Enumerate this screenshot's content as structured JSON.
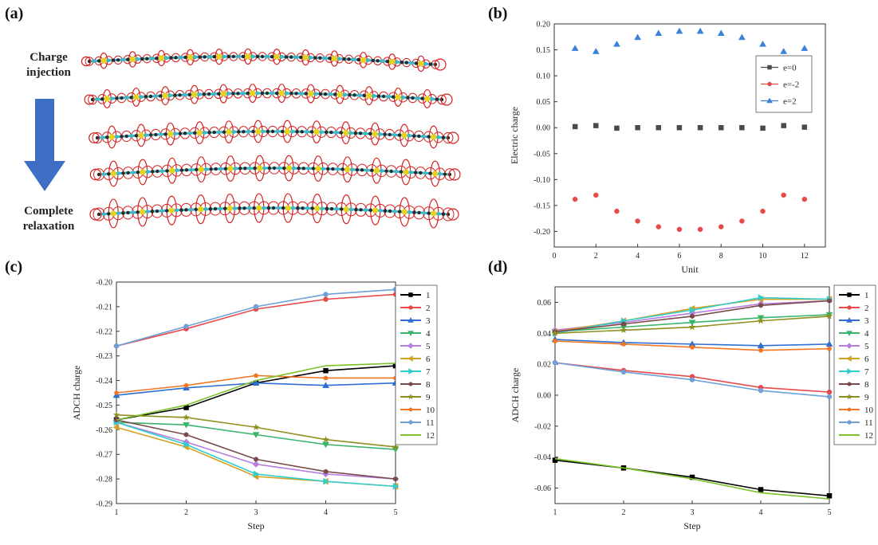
{
  "labels": {
    "a": "(a)",
    "b": "(b)",
    "c": "(c)",
    "d": "(d)",
    "charge_injection": [
      "Charge",
      "injection"
    ],
    "complete_relaxation": [
      "Complete",
      "relaxation"
    ]
  },
  "colors": {
    "arrow": "#3f6fc4",
    "chain_carbon": "#2a2a2a",
    "chain_nitrogen": "#3fb8c9",
    "chain_sulfur": "#e8d21a",
    "orbital": "#d42020"
  },
  "molecule_rows": [
    {
      "orbital_scale": 0.3
    },
    {
      "orbital_scale": 0.45
    },
    {
      "orbital_scale": 0.65
    },
    {
      "orbital_scale": 0.82
    },
    {
      "orbital_scale": 1.0
    }
  ],
  "chart_data": [
    {
      "id": "b",
      "type": "scatter",
      "xlabel": "Unit",
      "ylabel": "Electric charge",
      "xlim": [
        0,
        13
      ],
      "ylim": [
        -0.23,
        0.2
      ],
      "xticks": [
        "0",
        "2",
        "4",
        "6",
        "8",
        "10",
        "12"
      ],
      "xtick_values": [
        0,
        2,
        4,
        6,
        8,
        10,
        12
      ],
      "yticks": [
        "-0.20",
        "-0.15",
        "-0.10",
        "-0.05",
        "0.00",
        "0.05",
        "0.10",
        "0.15",
        "0.20"
      ],
      "ytick_values": [
        -0.2,
        -0.15,
        -0.1,
        -0.05,
        0,
        0.05,
        0.1,
        0.15,
        0.2
      ],
      "legend_position": "right",
      "x": [
        1,
        2,
        3,
        4,
        5,
        6,
        7,
        8,
        9,
        10,
        11,
        12
      ],
      "series": [
        {
          "name": "e=0",
          "color": "#4a4a4a",
          "marker": "square",
          "values": [
            0.002,
            0.004,
            -0.001,
            0.0,
            0.0,
            0.0,
            0.0,
            0.0,
            0.0,
            -0.001,
            0.004,
            0.001
          ]
        },
        {
          "name": "e=-2",
          "color": "#e84a4a",
          "marker": "circle",
          "values": [
            -0.138,
            -0.13,
            -0.161,
            -0.18,
            -0.191,
            -0.196,
            -0.196,
            -0.191,
            -0.18,
            -0.161,
            -0.13,
            -0.138
          ]
        },
        {
          "name": "e=2",
          "color": "#3a82d8",
          "marker": "triangle",
          "values": [
            0.153,
            0.147,
            0.161,
            0.174,
            0.182,
            0.186,
            0.186,
            0.182,
            0.174,
            0.161,
            0.147,
            0.153
          ]
        }
      ]
    },
    {
      "id": "c",
      "type": "line",
      "xlabel": "Step",
      "ylabel": "ADCH charge",
      "xlim": [
        1,
        5
      ],
      "ylim": [
        -0.29,
        -0.2
      ],
      "xticks": [
        "1",
        "2",
        "3",
        "4",
        "5"
      ],
      "xtick_values": [
        1,
        2,
        3,
        4,
        5
      ],
      "yticks": [
        "-0.29",
        "-0.28",
        "-0.27",
        "-0.26",
        "-0.25",
        "-0.24",
        "-0.23",
        "-0.22",
        "-0.21",
        "-0.20"
      ],
      "ytick_values": [
        -0.29,
        -0.28,
        -0.27,
        -0.26,
        -0.25,
        -0.24,
        -0.23,
        -0.22,
        -0.21,
        -0.2
      ],
      "legend_position": "right",
      "x": [
        1,
        2,
        3,
        4,
        5
      ],
      "series": [
        {
          "name": "1",
          "color": "#000000",
          "marker": "square",
          "values": [
            -0.256,
            -0.251,
            -0.241,
            -0.236,
            -0.234
          ]
        },
        {
          "name": "2",
          "color": "#e84a4a",
          "marker": "circle",
          "values": [
            -0.226,
            -0.219,
            -0.211,
            -0.207,
            -0.205
          ]
        },
        {
          "name": "3",
          "color": "#2f6fd1",
          "marker": "triangle",
          "values": [
            -0.246,
            -0.243,
            -0.241,
            -0.242,
            -0.241
          ]
        },
        {
          "name": "4",
          "color": "#3bb36b",
          "marker": "triangle-down",
          "values": [
            -0.257,
            -0.258,
            -0.262,
            -0.266,
            -0.268
          ]
        },
        {
          "name": "5",
          "color": "#b77ee0",
          "marker": "diamond",
          "values": [
            -0.257,
            -0.265,
            -0.274,
            -0.278,
            -0.28
          ]
        },
        {
          "name": "6",
          "color": "#d4a020",
          "marker": "triangle-left",
          "values": [
            -0.259,
            -0.267,
            -0.279,
            -0.281,
            -0.283
          ]
        },
        {
          "name": "7",
          "color": "#33cccc",
          "marker": "triangle-right",
          "values": [
            -0.257,
            -0.266,
            -0.278,
            -0.281,
            -0.283
          ]
        },
        {
          "name": "8",
          "color": "#7a4a4a",
          "marker": "hexagon",
          "values": [
            -0.256,
            -0.262,
            -0.272,
            -0.277,
            -0.28
          ]
        },
        {
          "name": "9",
          "color": "#8f8f1f",
          "marker": "star",
          "values": [
            -0.254,
            -0.255,
            -0.259,
            -0.264,
            -0.267
          ]
        },
        {
          "name": "10",
          "color": "#f27722",
          "marker": "pentagon",
          "values": [
            -0.245,
            -0.242,
            -0.238,
            -0.239,
            -0.239
          ]
        },
        {
          "name": "11",
          "color": "#6fa0d8",
          "marker": "circle",
          "values": [
            -0.226,
            -0.218,
            -0.21,
            -0.205,
            -0.203
          ]
        },
        {
          "name": "12",
          "color": "#7cc22a",
          "marker": "none",
          "values": [
            -0.256,
            -0.25,
            -0.24,
            -0.234,
            -0.233
          ]
        }
      ]
    },
    {
      "id": "d",
      "type": "line",
      "xlabel": "Step",
      "ylabel": "ADCH charge",
      "xlim": [
        1,
        5
      ],
      "ylim": [
        -0.07,
        0.07
      ],
      "xticks": [
        "1",
        "2",
        "3",
        "4",
        "5"
      ],
      "xtick_values": [
        1,
        2,
        3,
        4,
        5
      ],
      "yticks": [
        "-0.06",
        "-0.04",
        "-0.02",
        "0.00",
        "0.02",
        "0.04",
        "0.06"
      ],
      "ytick_values": [
        -0.06,
        -0.04,
        -0.02,
        0,
        0.02,
        0.04,
        0.06
      ],
      "legend_position": "right",
      "x": [
        1,
        2,
        3,
        4,
        5
      ],
      "series": [
        {
          "name": "1",
          "color": "#000000",
          "marker": "square",
          "values": [
            -0.042,
            -0.047,
            -0.053,
            -0.061,
            -0.065
          ]
        },
        {
          "name": "2",
          "color": "#e84a4a",
          "marker": "circle",
          "values": [
            0.021,
            0.016,
            0.012,
            0.005,
            0.002
          ]
        },
        {
          "name": "3",
          "color": "#2f6fd1",
          "marker": "triangle",
          "values": [
            0.036,
            0.034,
            0.033,
            0.032,
            0.033
          ]
        },
        {
          "name": "4",
          "color": "#3bb36b",
          "marker": "triangle-down",
          "values": [
            0.041,
            0.044,
            0.047,
            0.05,
            0.052
          ]
        },
        {
          "name": "5",
          "color": "#b77ee0",
          "marker": "diamond",
          "values": [
            0.042,
            0.047,
            0.053,
            0.059,
            0.061
          ]
        },
        {
          "name": "6",
          "color": "#d4a020",
          "marker": "triangle-left",
          "values": [
            0.041,
            0.048,
            0.056,
            0.062,
            0.062
          ]
        },
        {
          "name": "7",
          "color": "#33cccc",
          "marker": "triangle-right",
          "values": [
            0.04,
            0.048,
            0.055,
            0.063,
            0.062
          ]
        },
        {
          "name": "8",
          "color": "#7a4a4a",
          "marker": "hexagon",
          "values": [
            0.041,
            0.046,
            0.051,
            0.058,
            0.061
          ]
        },
        {
          "name": "9",
          "color": "#8f8f1f",
          "marker": "star",
          "values": [
            0.04,
            0.042,
            0.044,
            0.048,
            0.051
          ]
        },
        {
          "name": "10",
          "color": "#f27722",
          "marker": "pentagon",
          "values": [
            0.035,
            0.033,
            0.031,
            0.029,
            0.03
          ]
        },
        {
          "name": "11",
          "color": "#6fa0d8",
          "marker": "circle",
          "values": [
            0.021,
            0.015,
            0.01,
            0.003,
            -0.001
          ]
        },
        {
          "name": "12",
          "color": "#7cc22a",
          "marker": "none",
          "values": [
            -0.041,
            -0.047,
            -0.054,
            -0.063,
            -0.067
          ]
        }
      ]
    }
  ]
}
